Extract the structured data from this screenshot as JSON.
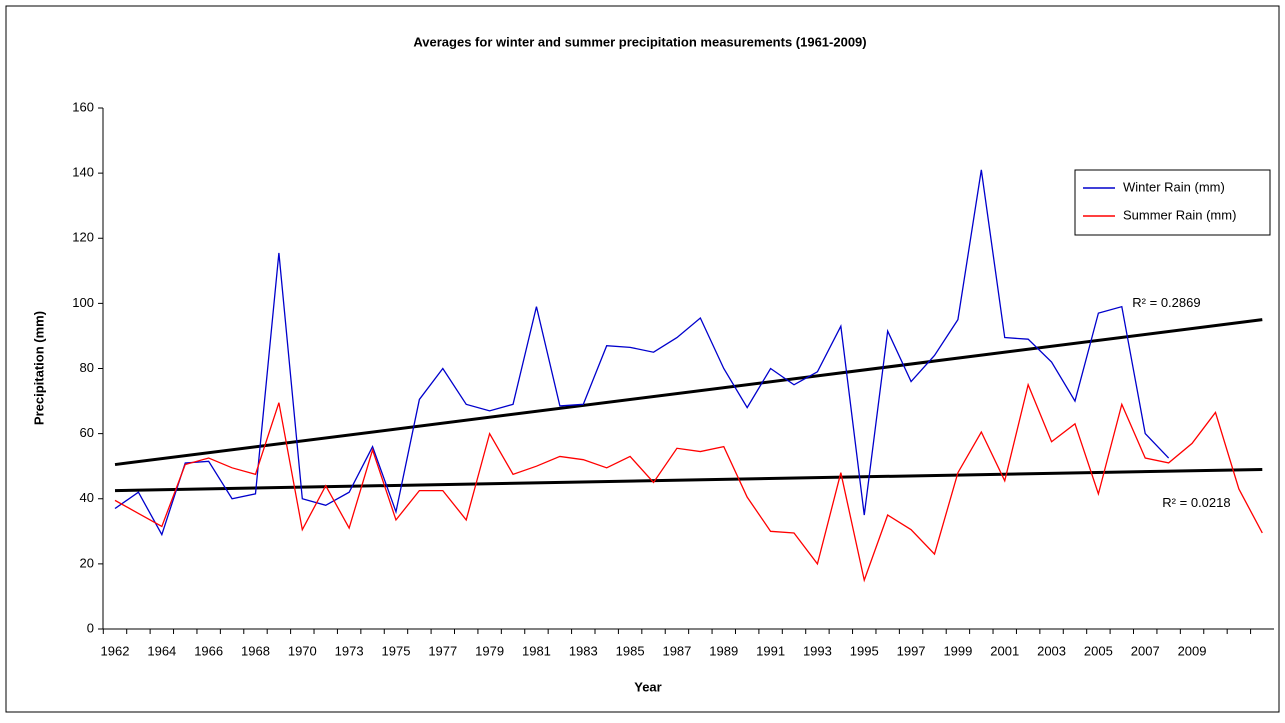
{
  "chart_data": {
    "type": "line",
    "title": "Averages for winter and summer precipitation measurements (1961-2009)",
    "xlabel": "Year",
    "ylabel": "Precipitation (mm)",
    "categories": [
      "1962",
      null,
      "1964",
      null,
      "1966",
      null,
      "1968",
      null,
      "1970",
      null,
      "1973",
      null,
      "1975",
      null,
      "1977",
      null,
      "1979",
      null,
      "1981",
      null,
      "1983",
      null,
      "1985",
      null,
      "1987",
      null,
      "1989",
      null,
      "1991",
      null,
      "1993",
      null,
      "1995",
      null,
      "1997",
      null,
      "1999",
      null,
      "2001",
      null,
      "2003",
      null,
      "2005",
      null,
      "2007",
      null,
      "2009",
      null,
      null,
      null
    ],
    "series": [
      {
        "name": "Winter Rain (mm)",
        "color": "#0000cc",
        "values": [
          37,
          42,
          29,
          51,
          51.5,
          40,
          41.5,
          115.5,
          40,
          38,
          42,
          56,
          36,
          70.5,
          80,
          69,
          67,
          69,
          99,
          68.5,
          69,
          87,
          86.5,
          85,
          89.5,
          95.5,
          80,
          68,
          80,
          75,
          79,
          93,
          35,
          91.5,
          76,
          84,
          95,
          141,
          89.5,
          89,
          82,
          70,
          97,
          99,
          60,
          52.5,
          null,
          null,
          null,
          null
        ]
      },
      {
        "name": "Summer Rain (mm)",
        "color": "#ff0000",
        "values": [
          39.5,
          35.5,
          31.5,
          50.5,
          52.5,
          49.5,
          47.5,
          69.5,
          30.5,
          44,
          31,
          55,
          33.5,
          42.5,
          42.5,
          33.5,
          60,
          47.5,
          50,
          53,
          52,
          49.5,
          53,
          45,
          55.5,
          54.5,
          56,
          40.5,
          30,
          29.5,
          20,
          48,
          15,
          35,
          30.5,
          23,
          48,
          60.5,
          45.5,
          75,
          57.5,
          63,
          41.5,
          69,
          52.5,
          51,
          57,
          66.5,
          43,
          29.5
        ]
      }
    ],
    "trendlines": [
      {
        "start": 50.5,
        "end": 95,
        "label": "R² = 0.2869"
      },
      {
        "start": 42.5,
        "end": 49,
        "label": "R² = 0.0218"
      }
    ],
    "ylim": [
      0,
      160
    ],
    "yticks": [
      0,
      20,
      40,
      60,
      80,
      100,
      120,
      140,
      160
    ],
    "legend": "right"
  }
}
